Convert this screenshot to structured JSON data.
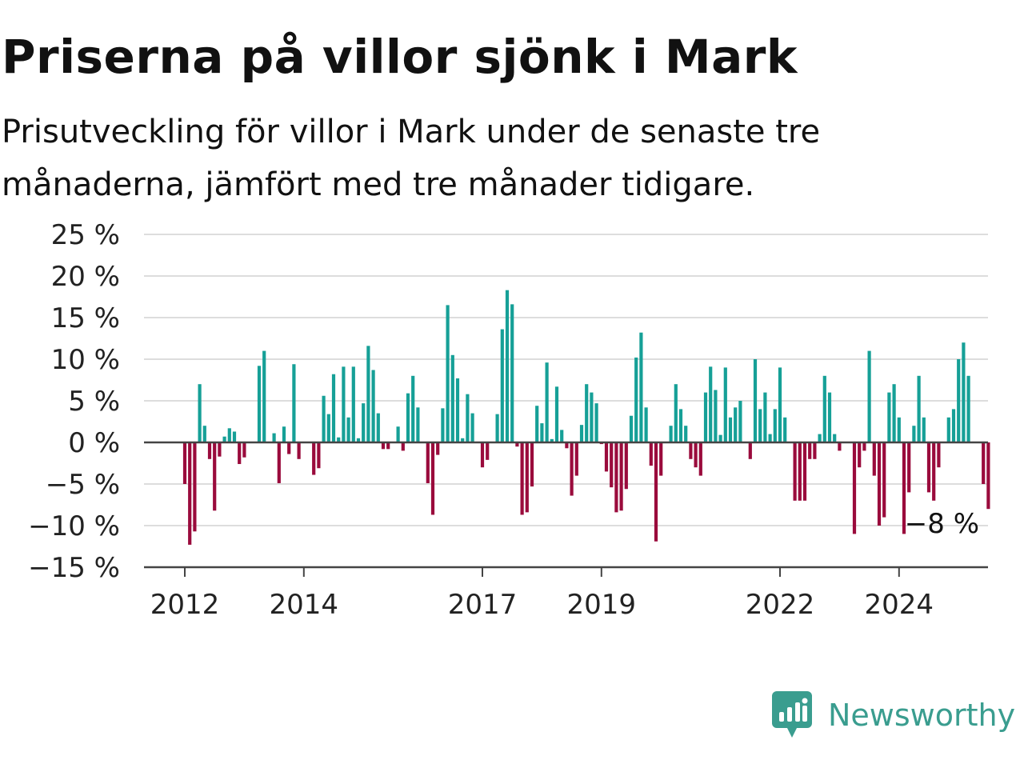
{
  "title": "Priserna på villor sjönk i Mark",
  "subtitle": "Prisutveckling för villor i Mark under de senaste tre månaderna, jämfört med tre månader tidigare.",
  "brand": {
    "name": "Newsworthy",
    "icon": "newsworthy-logo-icon",
    "color": "#3a9d8f"
  },
  "colors": {
    "positive": "#16a097",
    "negative": "#9a0b3c",
    "grid": "#dddddd",
    "axis": "#444444"
  },
  "chart_data": {
    "type": "bar",
    "ylabel": "",
    "xlabel": "",
    "ylim": [
      -15,
      25
    ],
    "grid": true,
    "y_ticks": [
      {
        "value": 25,
        "label": "25 %"
      },
      {
        "value": 20,
        "label": "20 %"
      },
      {
        "value": 15,
        "label": "15 %"
      },
      {
        "value": 10,
        "label": "10 %"
      },
      {
        "value": 5,
        "label": "5 %"
      },
      {
        "value": 0,
        "label": "0 %"
      },
      {
        "value": -5,
        "label": "−5 %"
      },
      {
        "value": -10,
        "label": "−10 %"
      },
      {
        "value": -15,
        "label": "−15 %"
      }
    ],
    "x_ticks": [
      {
        "index": 0,
        "label": "2012"
      },
      {
        "index": 24,
        "label": "2014"
      },
      {
        "index": 60,
        "label": "2017"
      },
      {
        "index": 84,
        "label": "2019"
      },
      {
        "index": 120,
        "label": "2022"
      },
      {
        "index": 144,
        "label": "2024"
      }
    ],
    "start": "2012-01",
    "end_label": "−8 %",
    "values": [
      -5,
      -12.3,
      -10.7,
      7,
      2,
      -2,
      -8.2,
      -1.7,
      0.7,
      1.7,
      1.3,
      -2.6,
      -1.8,
      0,
      0,
      9.2,
      11,
      0,
      1.1,
      -4.9,
      1.9,
      -1.4,
      9.4,
      -2,
      0,
      0,
      -3.9,
      -3.1,
      5.6,
      3.4,
      8.2,
      0.6,
      9.1,
      3,
      9.1,
      0.5,
      4.7,
      11.6,
      8.7,
      3.5,
      -0.8,
      -0.8,
      0,
      1.9,
      -1,
      5.9,
      8,
      4.2,
      0,
      -4.9,
      -8.7,
      -1.5,
      4.1,
      16.5,
      10.5,
      7.7,
      0.5,
      5.8,
      3.5,
      0,
      -3,
      -2.1,
      0,
      3.4,
      13.6,
      18.3,
      16.6,
      -0.5,
      -8.7,
      -8.4,
      -5.3,
      4.4,
      2.3,
      9.6,
      0.4,
      6.7,
      1.5,
      -0.7,
      -6.4,
      -4,
      2.1,
      7,
      6,
      4.7,
      -0.2,
      -3.5,
      -5.4,
      -8.4,
      -8.2,
      -5.6,
      3.2,
      10.2,
      13.2,
      4.2,
      -2.8,
      -11.9,
      -4,
      0,
      2,
      7,
      4,
      2,
      -2,
      -3,
      -4,
      6,
      9.1,
      6.3,
      0.9,
      9,
      3,
      4.2,
      5,
      0,
      -2,
      10,
      4,
      6,
      1,
      4,
      9,
      3,
      0,
      -7,
      -7,
      -7,
      -2,
      -2,
      1,
      8,
      6,
      1,
      -1,
      0,
      0,
      -11,
      -3,
      -1,
      11,
      -4,
      -10,
      -9,
      6,
      7,
      3,
      -11,
      -6,
      2,
      8,
      3,
      -6,
      -7,
      -3,
      0,
      3,
      4,
      10,
      12,
      8,
      0,
      0,
      -5,
      -8
    ]
  }
}
